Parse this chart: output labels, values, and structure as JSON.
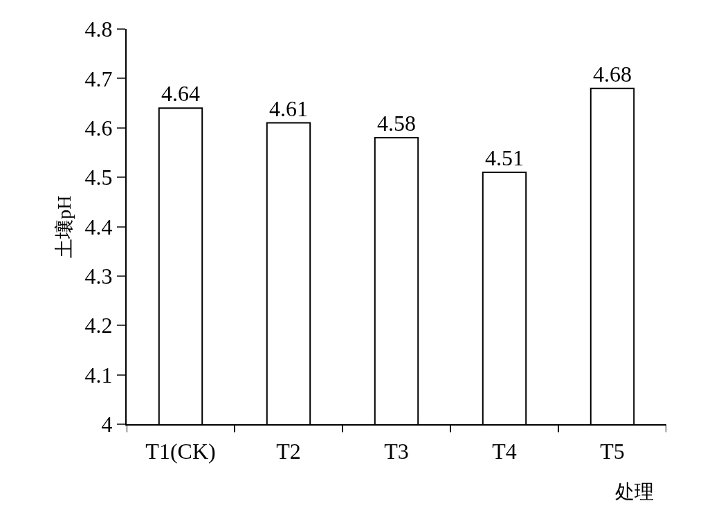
{
  "chart_data": {
    "type": "bar",
    "xlabel": "处理",
    "ylabel": "土壤pH",
    "categories": [
      "T1(CK)",
      "T2",
      "T3",
      "T4",
      "T5"
    ],
    "values": [
      4.64,
      4.61,
      4.58,
      4.51,
      4.68
    ],
    "color": "#ffffff",
    "ylim": [
      4,
      4.8
    ],
    "yticks": [
      4,
      4.1,
      4.2,
      4.3,
      4.4,
      4.5,
      4.6,
      4.7,
      4.8
    ],
    "data_labels": true,
    "grid": false
  }
}
